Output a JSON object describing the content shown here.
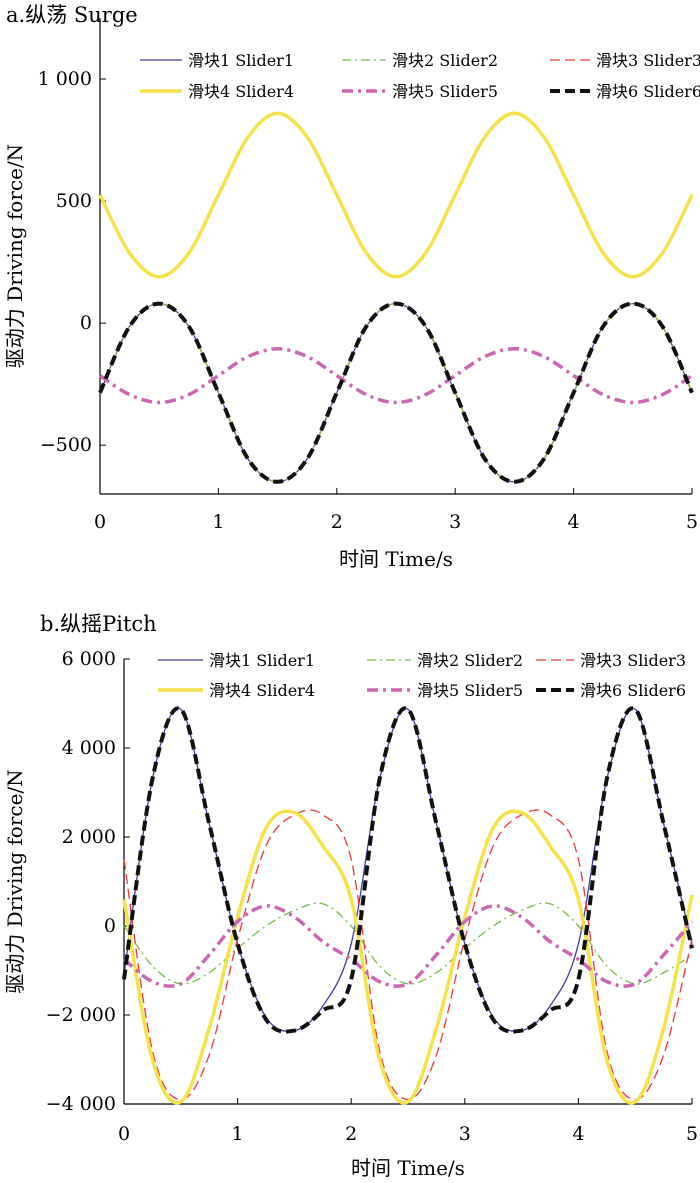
{
  "chart_data": [
    {
      "type": "line",
      "title": "a.纵荡 Surge",
      "xlabel": "时间 Time/s",
      "ylabel": "驱动力 Driving force/N",
      "xlim": [
        0,
        5
      ],
      "ylim": [
        -700,
        1250
      ],
      "xticks": [
        "0",
        "1",
        "2",
        "3",
        "4",
        "5"
      ],
      "yticks": [
        {
          "value": 1000,
          "label": "1 000"
        },
        {
          "value": 500,
          "label": "500"
        },
        {
          "value": 0,
          "label": "0"
        },
        {
          "value": -500,
          "label": "−500"
        }
      ],
      "grid": false,
      "legend_position": "top",
      "series": [
        {
          "name": "滑块1 Slider1",
          "color": "#3f3f9f",
          "style": "solid",
          "x": [
            0,
            0.25,
            0.5,
            0.75,
            1,
            1.25,
            1.5,
            1.75,
            2,
            2.25,
            2.5,
            2.75,
            3,
            3.25,
            3.5,
            3.75,
            4,
            4.25,
            4.5,
            4.75,
            5
          ],
          "values": [
            -285,
            -13,
            80,
            -13,
            -285,
            -556,
            -650,
            -556,
            -285,
            -13,
            80,
            -13,
            -285,
            -556,
            -650,
            -556,
            -285,
            -13,
            80,
            -13,
            -285
          ]
        },
        {
          "name": "滑块2 Slider2",
          "color": "#77bb44",
          "style": "dashdot",
          "x": [
            0,
            0.25,
            0.5,
            0.75,
            1,
            1.25,
            1.5,
            1.75,
            2,
            2.25,
            2.5,
            2.75,
            3,
            3.25,
            3.5,
            3.75,
            4,
            4.25,
            4.5,
            4.75,
            5
          ],
          "values": [
            -285,
            -13,
            80,
            -13,
            -285,
            -556,
            -650,
            -556,
            -285,
            -13,
            80,
            -13,
            -285,
            -556,
            -650,
            -556,
            -285,
            -13,
            80,
            -13,
            -285
          ]
        },
        {
          "name": "滑块3 Slider3",
          "color": "#e8383d",
          "style": "dashed",
          "x": [
            0,
            0.25,
            0.5,
            0.75,
            1,
            1.25,
            1.5,
            1.75,
            2,
            2.25,
            2.5,
            2.75,
            3,
            3.25,
            3.5,
            3.75,
            4,
            4.25,
            4.5,
            4.75,
            5
          ],
          "values": [
            -285,
            -13,
            80,
            -13,
            -285,
            -556,
            -650,
            -556,
            -285,
            -13,
            80,
            -13,
            -285,
            -556,
            -650,
            -556,
            -285,
            -13,
            80,
            -13,
            -285
          ]
        },
        {
          "name": "滑块4 Slider4",
          "color": "#f5e14a",
          "style": "solid-thick",
          "x": [
            0,
            0.25,
            0.5,
            0.75,
            1,
            1.25,
            1.5,
            1.75,
            2,
            2.25,
            2.5,
            2.75,
            3,
            3.25,
            3.5,
            3.75,
            4,
            4.25,
            4.5,
            4.75,
            5
          ],
          "values": [
            525,
            287,
            190,
            287,
            525,
            762,
            860,
            762,
            525,
            287,
            190,
            287,
            525,
            762,
            860,
            762,
            525,
            287,
            190,
            287,
            525
          ]
        },
        {
          "name": "滑块5 Slider5",
          "color": "#cc66b3",
          "style": "dashdot-thick",
          "x": [
            0,
            0.25,
            0.5,
            0.75,
            1,
            1.25,
            1.5,
            1.75,
            2,
            2.25,
            2.5,
            2.75,
            3,
            3.25,
            3.5,
            3.75,
            4,
            4.25,
            4.5,
            4.75,
            5
          ],
          "values": [
            -215,
            -293,
            -325,
            -293,
            -215,
            -137,
            -105,
            -137,
            -215,
            -293,
            -325,
            -293,
            -215,
            -137,
            -105,
            -137,
            -215,
            -293,
            -325,
            -293,
            -215
          ]
        },
        {
          "name": "滑块6 Slider6",
          "color": "#111111",
          "style": "dashed-thick",
          "x": [
            0,
            0.25,
            0.5,
            0.75,
            1,
            1.25,
            1.5,
            1.75,
            2,
            2.25,
            2.5,
            2.75,
            3,
            3.25,
            3.5,
            3.75,
            4,
            4.25,
            4.5,
            4.75,
            5
          ],
          "values": [
            -285,
            -13,
            80,
            -13,
            -285,
            -556,
            -650,
            -556,
            -285,
            -13,
            80,
            -13,
            -285,
            -556,
            -650,
            -556,
            -285,
            -13,
            80,
            -13,
            -285
          ]
        }
      ]
    },
    {
      "type": "line",
      "title": "b.纵摇Pitch",
      "xlabel": "时间 Time/s",
      "ylabel": "驱动力 Driving force/N",
      "xlim": [
        0,
        5
      ],
      "ylim": [
        -4000,
        6000
      ],
      "xticks": [
        "0",
        "1",
        "2",
        "3",
        "4",
        "5"
      ],
      "yticks": [
        {
          "value": 6000,
          "label": "6 000"
        },
        {
          "value": 4000,
          "label": "4 000"
        },
        {
          "value": 2000,
          "label": "2 000"
        },
        {
          "value": 0,
          "label": "0"
        },
        {
          "value": -2000,
          "label": "−2 000"
        },
        {
          "value": -4000,
          "label": "−4 000"
        }
      ],
      "grid": false,
      "legend_position": "top",
      "series": [
        {
          "name": "滑块1 Slider1",
          "color": "#3f3f9f",
          "style": "solid",
          "x": [
            0,
            0.25,
            0.5,
            0.75,
            1,
            1.25,
            1.5,
            1.75,
            2,
            2.25,
            2.5,
            2.75,
            3,
            3.25,
            3.5,
            3.75,
            4,
            4.25,
            4.5,
            4.75,
            5
          ],
          "values": [
            -1100,
            3300,
            4870,
            2300,
            -400,
            -2050,
            -2350,
            -1800,
            -400,
            3300,
            4870,
            2300,
            -400,
            -2050,
            -2350,
            -1800,
            -400,
            3300,
            4870,
            2300,
            -400
          ]
        },
        {
          "name": "滑块2 Slider2",
          "color": "#77bb44",
          "style": "dashdot",
          "x": [
            0,
            0.25,
            0.5,
            0.75,
            1,
            1.25,
            1.5,
            1.75,
            2,
            2.25,
            2.5,
            2.75,
            3,
            3.25,
            3.5,
            3.75,
            4,
            4.25,
            4.5,
            4.75,
            5
          ],
          "values": [
            0,
            -900,
            -1300,
            -1050,
            -500,
            0,
            350,
            500,
            0,
            -900,
            -1300,
            -1050,
            -500,
            0,
            350,
            500,
            0,
            -900,
            -1300,
            -1050,
            -650
          ]
        },
        {
          "name": "滑块3 Slider3",
          "color": "#e8383d",
          "style": "dashed",
          "x": [
            0,
            0.25,
            0.5,
            0.75,
            1,
            1.25,
            1.5,
            1.75,
            2,
            2.25,
            2.5,
            2.75,
            3,
            3.25,
            3.5,
            3.75,
            4,
            4.25,
            4.5,
            4.75,
            5
          ],
          "values": [
            1500,
            -2800,
            -3900,
            -2900,
            -300,
            1800,
            2500,
            2500,
            1500,
            -2800,
            -3900,
            -2900,
            -300,
            1800,
            2500,
            2500,
            1500,
            -2800,
            -3900,
            -2900,
            -300
          ]
        },
        {
          "name": "滑块4 Slider4",
          "color": "#f5e14a",
          "style": "solid-thick",
          "x": [
            0,
            0.25,
            0.5,
            0.75,
            1,
            1.25,
            1.5,
            1.75,
            2,
            2.25,
            2.5,
            2.75,
            3,
            3.25,
            3.5,
            3.75,
            4,
            4.25,
            4.5,
            4.75,
            5
          ],
          "values": [
            600,
            -3000,
            -3950,
            -2300,
            200,
            2200,
            2550,
            1800,
            600,
            -3000,
            -3950,
            -2300,
            200,
            2200,
            2550,
            1800,
            600,
            -3000,
            -3950,
            -2300,
            700
          ]
        },
        {
          "name": "滑块5 Slider5",
          "color": "#cc66b3",
          "style": "dashdot-thick",
          "x": [
            0,
            0.25,
            0.5,
            0.75,
            1,
            1.25,
            1.5,
            1.75,
            2,
            2.25,
            2.5,
            2.75,
            3,
            3.25,
            3.5,
            3.75,
            4,
            4.25,
            4.5,
            4.75,
            5
          ],
          "values": [
            -750,
            -1250,
            -1300,
            -650,
            100,
            450,
            200,
            -350,
            -750,
            -1250,
            -1300,
            -650,
            100,
            450,
            200,
            -350,
            -750,
            -1250,
            -1300,
            -650,
            100
          ]
        },
        {
          "name": "滑块6 Slider6",
          "color": "#111111",
          "style": "dashed-thick",
          "x": [
            0,
            0.25,
            0.5,
            0.75,
            1,
            1.25,
            1.5,
            1.75,
            2,
            2.25,
            2.5,
            2.75,
            3,
            3.25,
            3.5,
            3.75,
            4,
            4.25,
            4.5,
            4.75,
            5
          ],
          "values": [
            -1200,
            3300,
            4870,
            2300,
            -400,
            -2100,
            -2350,
            -1900,
            -1200,
            3300,
            4870,
            2300,
            -400,
            -2100,
            -2350,
            -1900,
            -1200,
            3300,
            4870,
            2300,
            -500
          ]
        }
      ]
    }
  ]
}
